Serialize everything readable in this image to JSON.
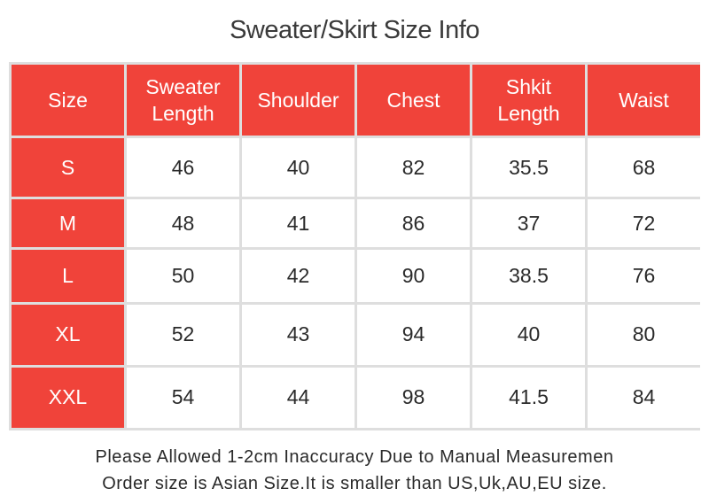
{
  "title": "Sweater/Skirt Size Info",
  "table": {
    "headers": [
      "Size",
      "Sweater Length",
      "Shoulder",
      "Chest",
      "Shkit Length",
      "Waist"
    ],
    "rows": [
      {
        "size": "S",
        "values": [
          "46",
          "40",
          "82",
          "35.5",
          "68"
        ]
      },
      {
        "size": "M",
        "values": [
          "48",
          "41",
          "86",
          "37",
          "72"
        ]
      },
      {
        "size": "L",
        "values": [
          "50",
          "42",
          "90",
          "38.5",
          "76"
        ]
      },
      {
        "size": "XL",
        "values": [
          "52",
          "43",
          "94",
          "40",
          "80"
        ]
      },
      {
        "size": "XXL",
        "values": [
          "54",
          "44",
          "98",
          "41.5",
          "84"
        ]
      }
    ]
  },
  "footer": {
    "line1": "Please Allowed 1-2cm Inaccuracy Due to Manual Measuremen",
    "line2": "Order size is Asian Size.It is smaller than US,Uk,AU,EU size."
  },
  "colors": {
    "header_bg": "#f0433a",
    "border": "#dedede",
    "text": "#2a2a2a"
  }
}
